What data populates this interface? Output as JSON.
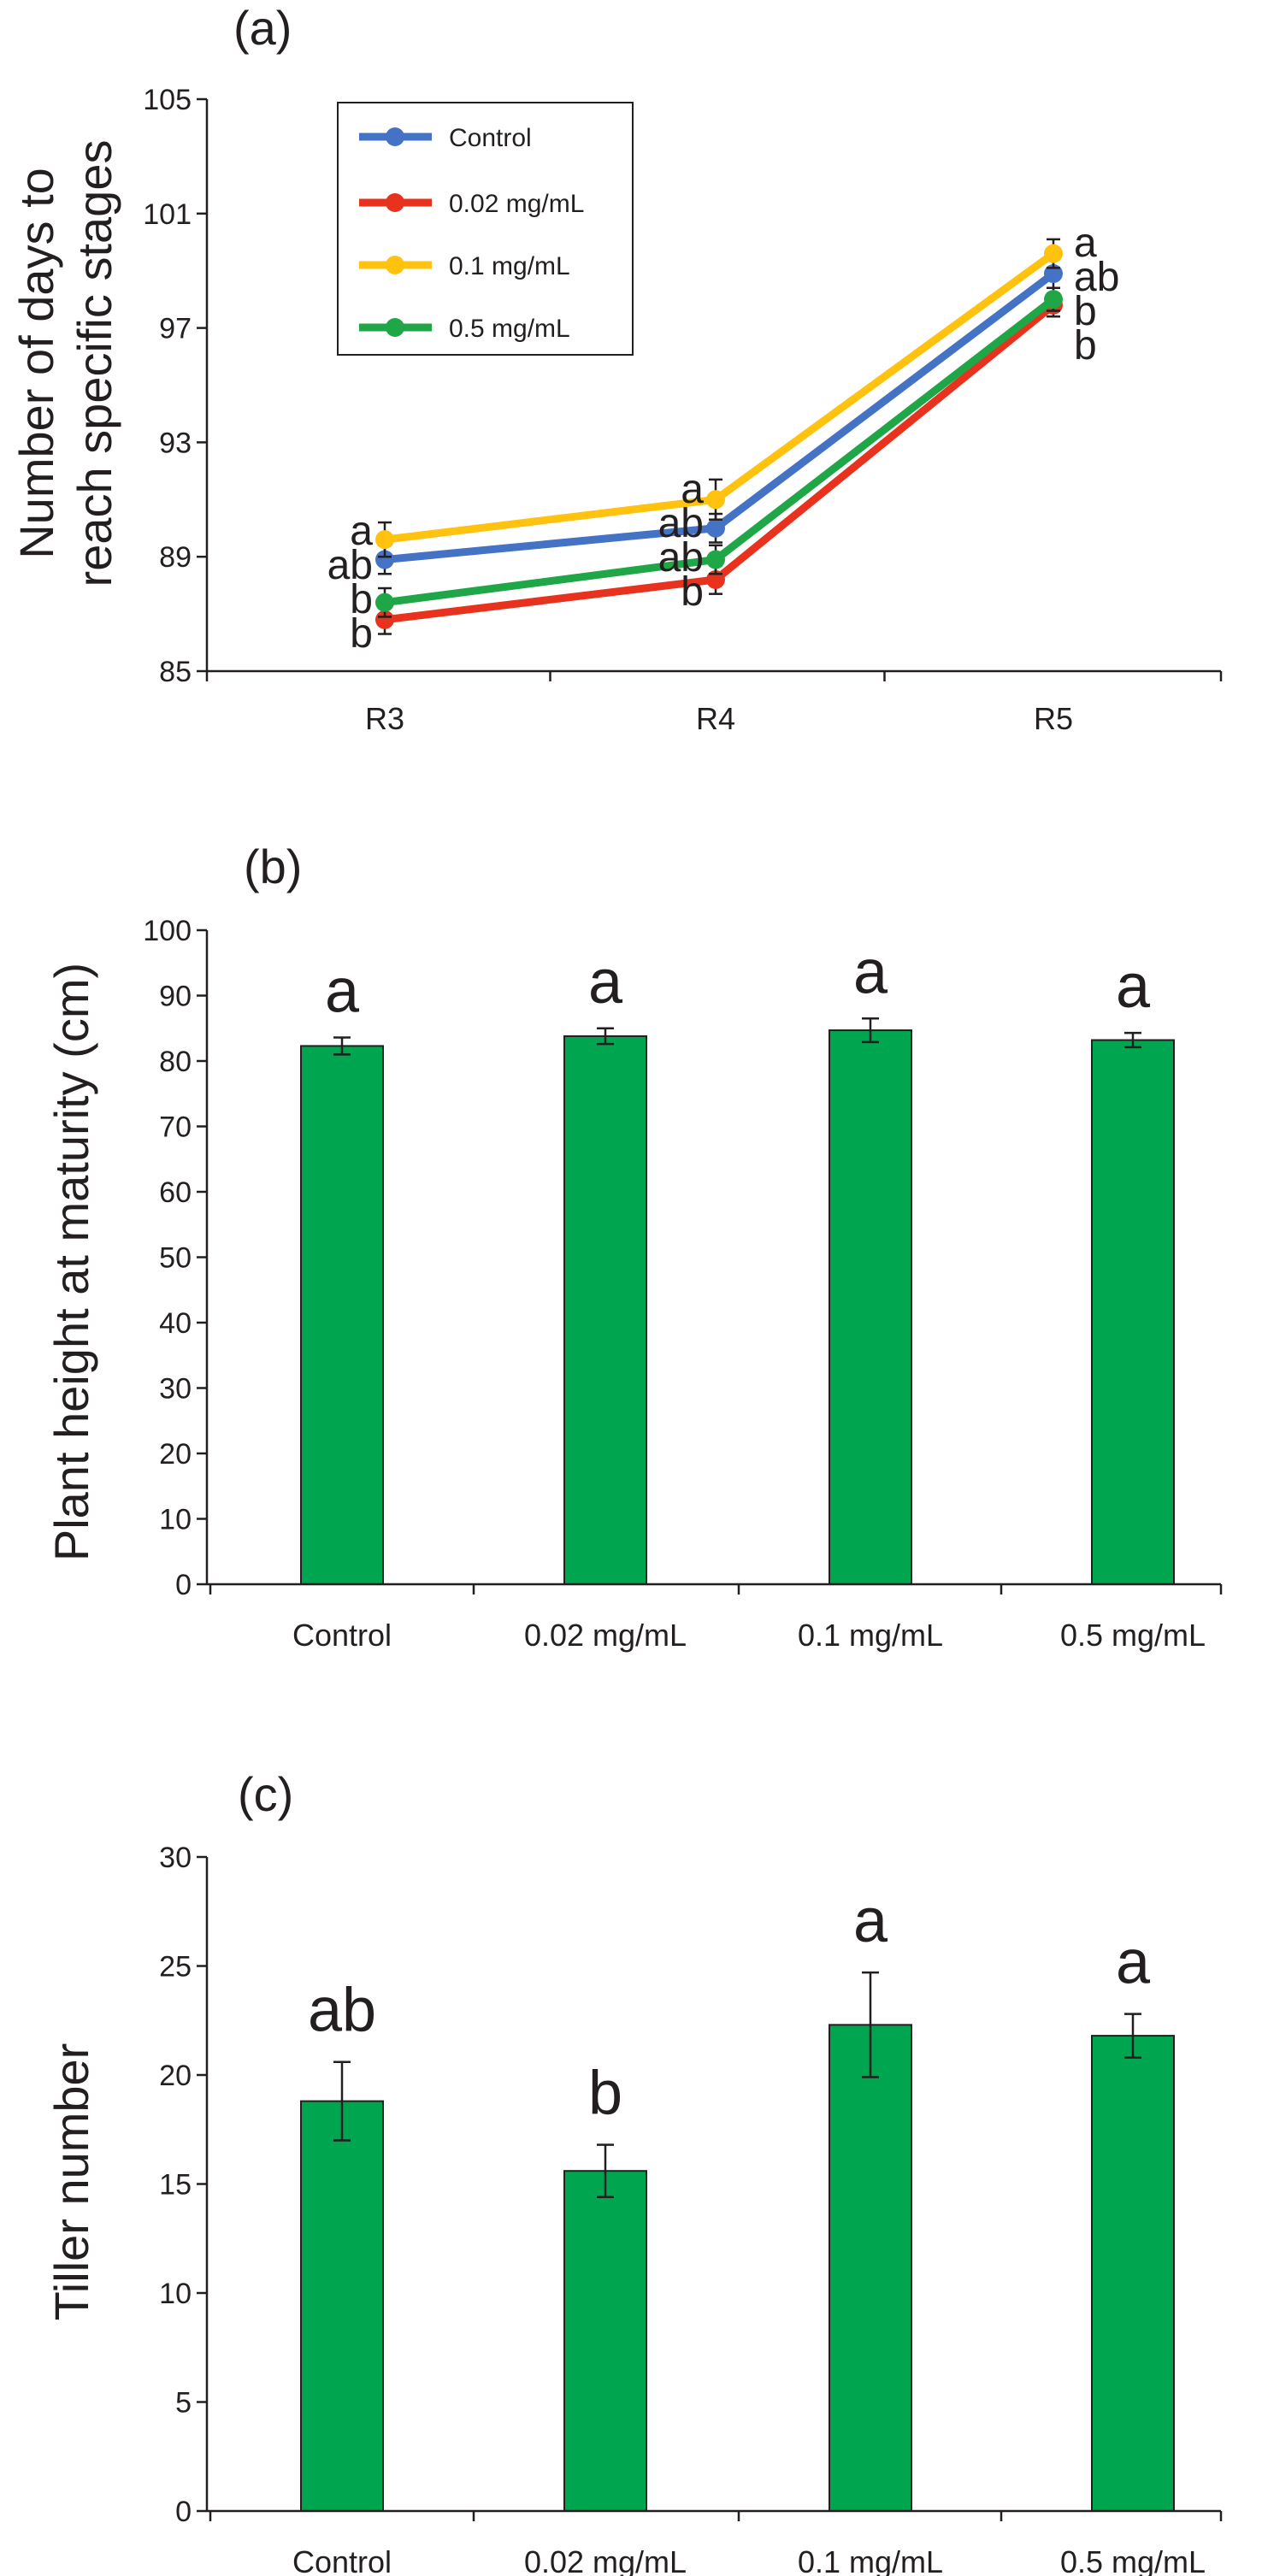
{
  "colors": {
    "control": "#4472c4",
    "c002": "#e8321e",
    "c01": "#ffc20e",
    "c05": "#1fa646",
    "bar": "#00a550",
    "axis": "#231f20"
  },
  "chart_data": [
    {
      "panel": "(a)",
      "type": "line",
      "title": "",
      "xlabel": "",
      "ylabel": [
        "Number of days to",
        "reach specific stages"
      ],
      "categories": [
        "R3",
        "R4",
        "R5"
      ],
      "ylim": [
        85,
        105
      ],
      "yticks": [
        "85",
        "89",
        "93",
        "97",
        "101",
        "105"
      ],
      "legend_position": "top-left",
      "series": [
        {
          "name": "Control",
          "color_key": "control",
          "values": [
            88.9,
            90.0,
            98.9
          ],
          "errors": [
            0.5,
            0.5,
            0.5
          ],
          "letters": [
            "ab",
            "ab",
            "ab"
          ]
        },
        {
          "name": "0.02 mg/mL",
          "color_key": "c002",
          "values": [
            86.8,
            88.2,
            97.8
          ],
          "errors": [
            0.5,
            0.5,
            0.4
          ],
          "letters": [
            "b",
            "b",
            "b"
          ]
        },
        {
          "name": "0.1 mg/mL",
          "color_key": "c01",
          "values": [
            89.6,
            91.0,
            99.6
          ],
          "errors": [
            0.6,
            0.7,
            0.5
          ],
          "letters": [
            "a",
            "a",
            "a"
          ]
        },
        {
          "name": "0.5 mg/mL",
          "color_key": "c05",
          "values": [
            87.4,
            88.9,
            98.0
          ],
          "errors": [
            0.5,
            0.5,
            0.4
          ],
          "letters": [
            "b",
            "ab",
            "b"
          ]
        }
      ]
    },
    {
      "panel": "(b)",
      "type": "bar",
      "title": "",
      "xlabel": "",
      "ylabel": "Plant height at maturity (cm)",
      "categories": [
        "Control",
        "0.02 mg/mL",
        "0.1 mg/mL",
        "0.5 mg/mL"
      ],
      "ylim": [
        0,
        100
      ],
      "yticks": [
        "0",
        "10",
        "20",
        "30",
        "40",
        "50",
        "60",
        "70",
        "80",
        "90",
        "100"
      ],
      "values": [
        82.3,
        83.8,
        84.7,
        83.2
      ],
      "errors": [
        1.3,
        1.2,
        1.8,
        1.1
      ],
      "letters": [
        "a",
        "a",
        "a",
        "a"
      ]
    },
    {
      "panel": "(c)",
      "type": "bar",
      "title": "",
      "xlabel": "",
      "ylabel": "Tiller number",
      "categories": [
        "Control",
        "0.02 mg/mL",
        "0.1 mg/mL",
        "0.5 mg/mL"
      ],
      "ylim": [
        0,
        30
      ],
      "yticks": [
        "0",
        "5",
        "10",
        "15",
        "20",
        "25",
        "30"
      ],
      "values": [
        18.8,
        15.6,
        22.3,
        21.8
      ],
      "errors": [
        1.8,
        1.2,
        2.4,
        1.0
      ],
      "letters": [
        "ab",
        "b",
        "a",
        "a"
      ]
    }
  ]
}
